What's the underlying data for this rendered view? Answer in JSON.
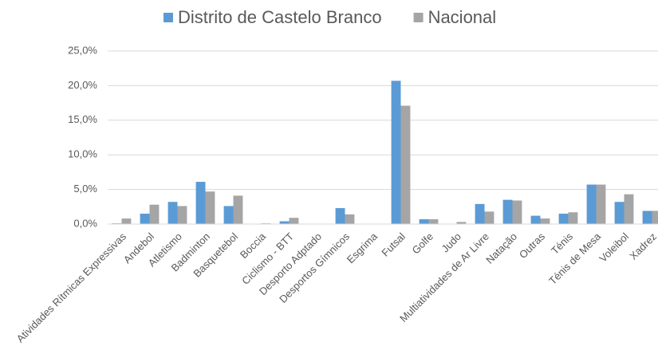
{
  "chart_data": {
    "type": "bar",
    "categories": [
      "Atividades Rítmicas Expressivas",
      "Andebol",
      "Atletismo",
      "Badminton",
      "Basquetebol",
      "Boccia",
      "Ciclismo - BTT",
      "Desporto Adptado",
      "Desportos Gímnicos",
      "Esgrima",
      "Futsal",
      "Golfe",
      "Judo",
      "Multiatividades de Ar Livre",
      "Natação",
      "Outras",
      "Ténis",
      "Ténis de Mesa",
      "Voleibol",
      "Xadrez"
    ],
    "series": [
      {
        "name": "Distrito de Castelo Branco",
        "color": "#5b9bd5",
        "values": [
          0.1,
          1.5,
          3.2,
          6.1,
          2.6,
          0,
          0.4,
          0,
          2.3,
          0,
          20.7,
          0.7,
          0,
          2.9,
          3.5,
          1.2,
          1.5,
          5.7,
          3.2,
          1.9
        ]
      },
      {
        "name": "Nacional",
        "color": "#a5a5a5",
        "values": [
          0.8,
          2.8,
          2.6,
          4.7,
          4.1,
          0.1,
          0.9,
          0,
          1.4,
          0,
          17.1,
          0.7,
          0.3,
          1.8,
          3.4,
          0.8,
          1.7,
          5.7,
          4.3,
          1.9
        ]
      }
    ],
    "ylim": [
      0,
      25
    ],
    "yticks": [
      {
        "value": 0,
        "label": "0,0%"
      },
      {
        "value": 5,
        "label": "5,0%"
      },
      {
        "value": 10,
        "label": "10,0%"
      },
      {
        "value": 15,
        "label": "15,0%"
      },
      {
        "value": 20,
        "label": "20,0%"
      },
      {
        "value": 25,
        "label": "25,0%"
      }
    ],
    "grid": true,
    "legend": "top"
  }
}
